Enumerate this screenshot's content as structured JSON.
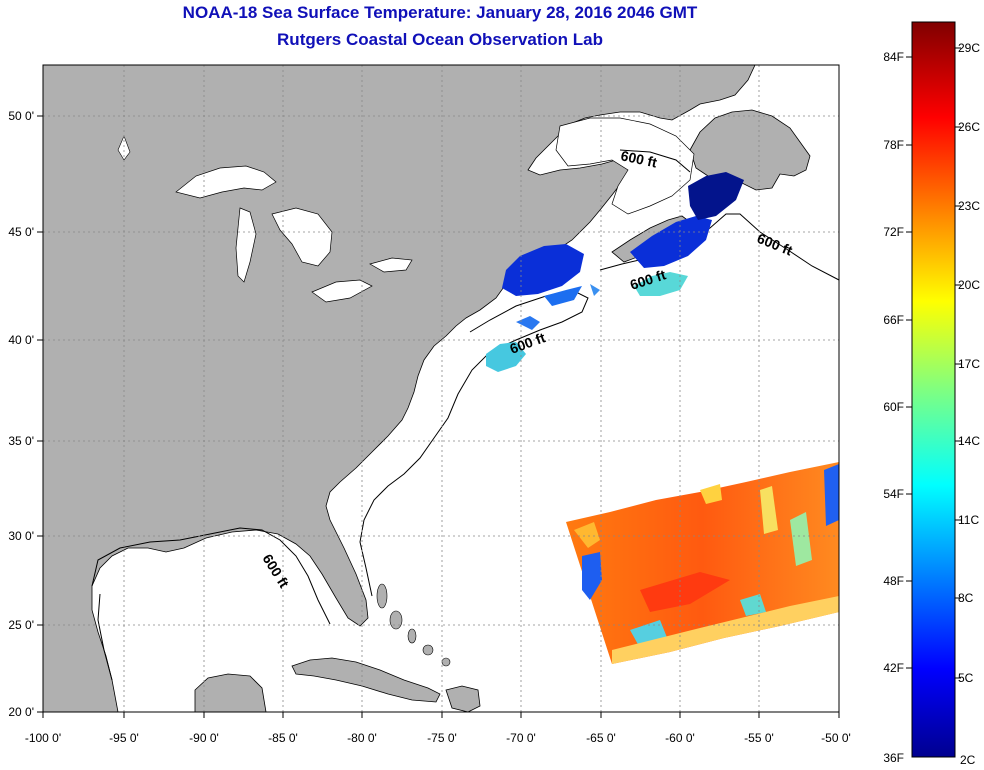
{
  "title": "NOAA-18 Sea Surface Temperature:  January 28, 2016 2046 GMT",
  "subtitle": "Rutgers Coastal Ocean Observation Lab",
  "map": {
    "lon_ticks": [
      "-100 0'",
      "-95 0'",
      "-90 0'",
      "-85 0'",
      "-80 0'",
      "-75 0'",
      "-70 0'",
      "-65 0'",
      "-60 0'",
      "-55 0'",
      "-50 0'"
    ],
    "lat_ticks": [
      "50 0'",
      "45 0'",
      "40 0'",
      "35 0'",
      "30 0'",
      "25 0'",
      "20 0'"
    ],
    "depth_labels": [
      "600 ft",
      "600 ft",
      "600 ft",
      "600 ft",
      "600 ft"
    ],
    "colors": {
      "land": "#b0b0b0",
      "ocean": "#ffffff",
      "grid": "#888888"
    }
  },
  "colorbar": {
    "fahrenheit": [
      "84F",
      "78F",
      "72F",
      "66F",
      "60F",
      "54F",
      "48F",
      "42F",
      "36F"
    ],
    "celsius": [
      "29C",
      "26C",
      "23C",
      "20C",
      "17C",
      "14C",
      "11C",
      "8C",
      "5C",
      "2C"
    ]
  }
}
